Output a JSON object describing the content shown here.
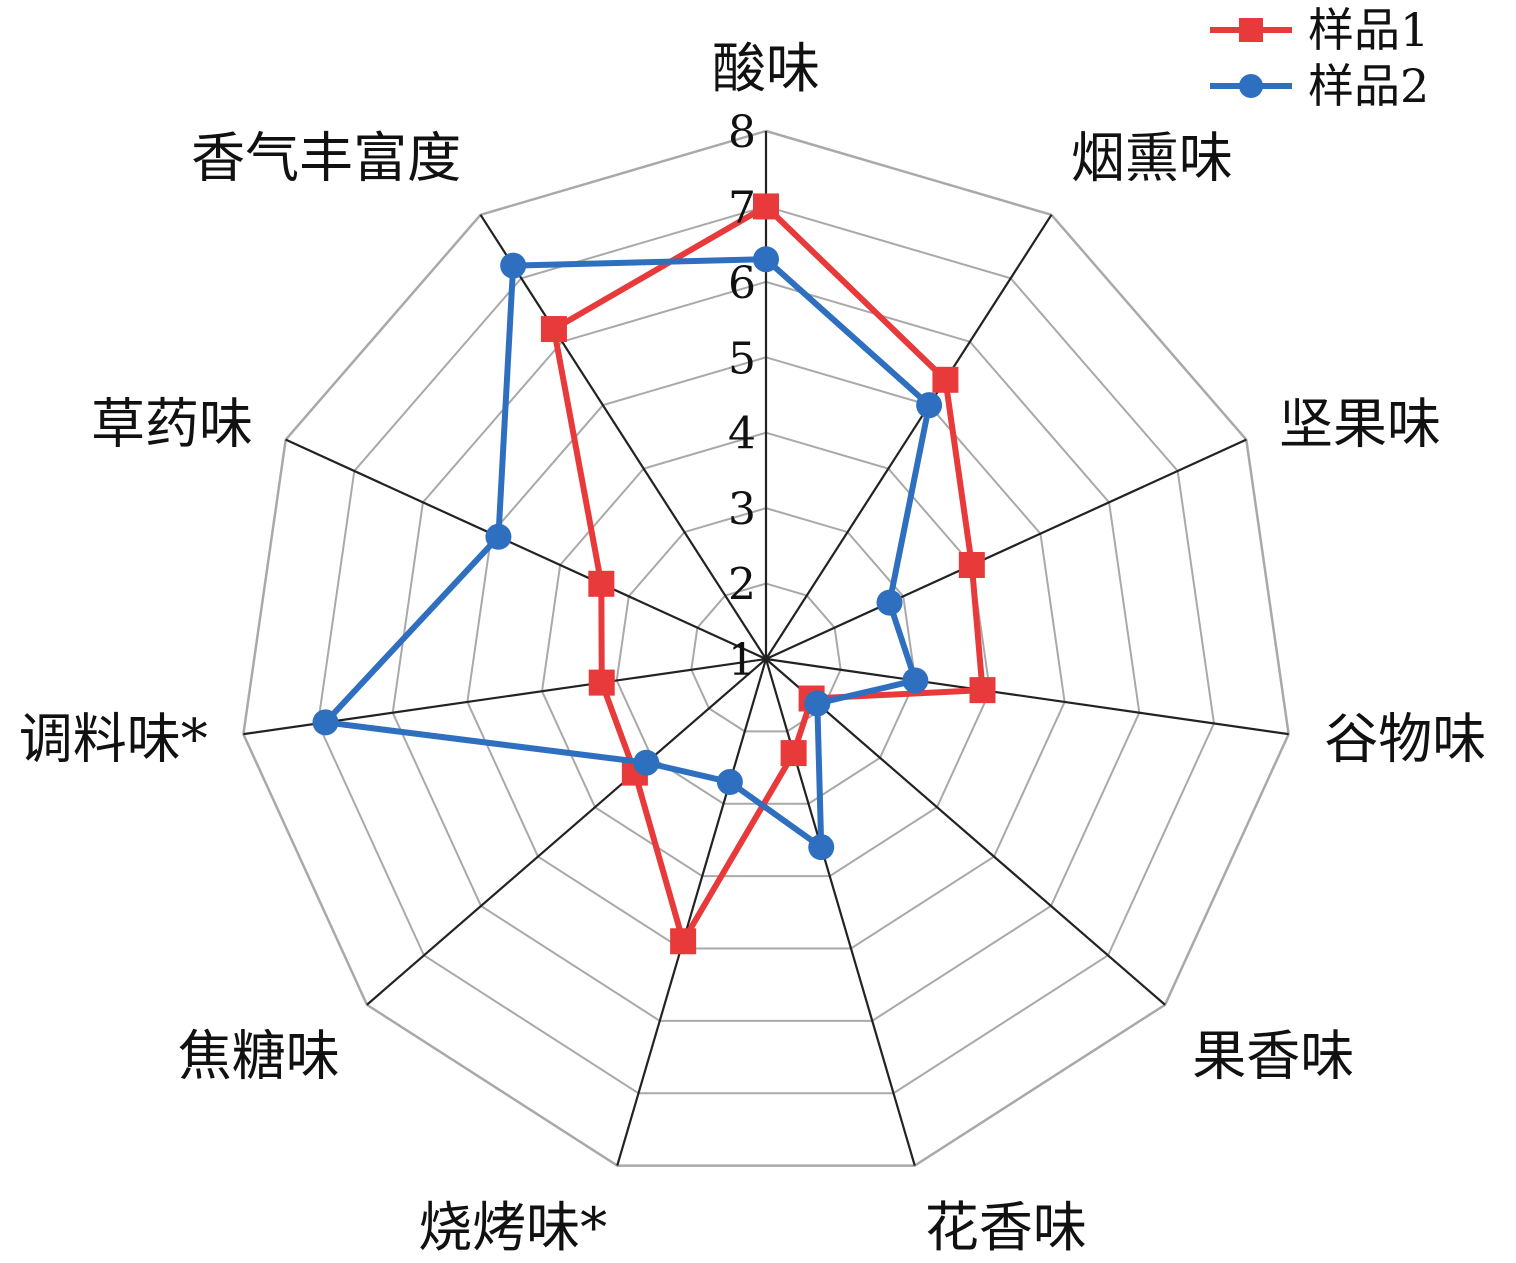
{
  "chart_data": {
    "type": "radar",
    "axes": [
      "酸味",
      "烟熏味",
      "坚果味",
      "谷物味",
      "果香味",
      "花香味",
      "烧烤味*",
      "焦糖味",
      "调料味*",
      "草药味",
      "香气丰富度"
    ],
    "rmin": 1,
    "rmax": 8,
    "ticks": [
      "1",
      "2",
      "3",
      "4",
      "5",
      "6",
      "7",
      "8"
    ],
    "grid": true,
    "legend_position": "top-right",
    "series": [
      {
        "name": "样品1",
        "color": "#e8393b",
        "marker": "square",
        "values": [
          7.0,
          5.4,
          4.0,
          3.9,
          1.8,
          2.3,
          4.9,
          3.3,
          3.2,
          3.4,
          6.2
        ]
      },
      {
        "name": "样品2",
        "color": "#2f6fbf",
        "marker": "circle",
        "values": [
          6.3,
          5.0,
          2.8,
          3.0,
          1.9,
          3.6,
          2.7,
          3.1,
          6.9,
          4.9,
          7.2
        ]
      }
    ]
  }
}
